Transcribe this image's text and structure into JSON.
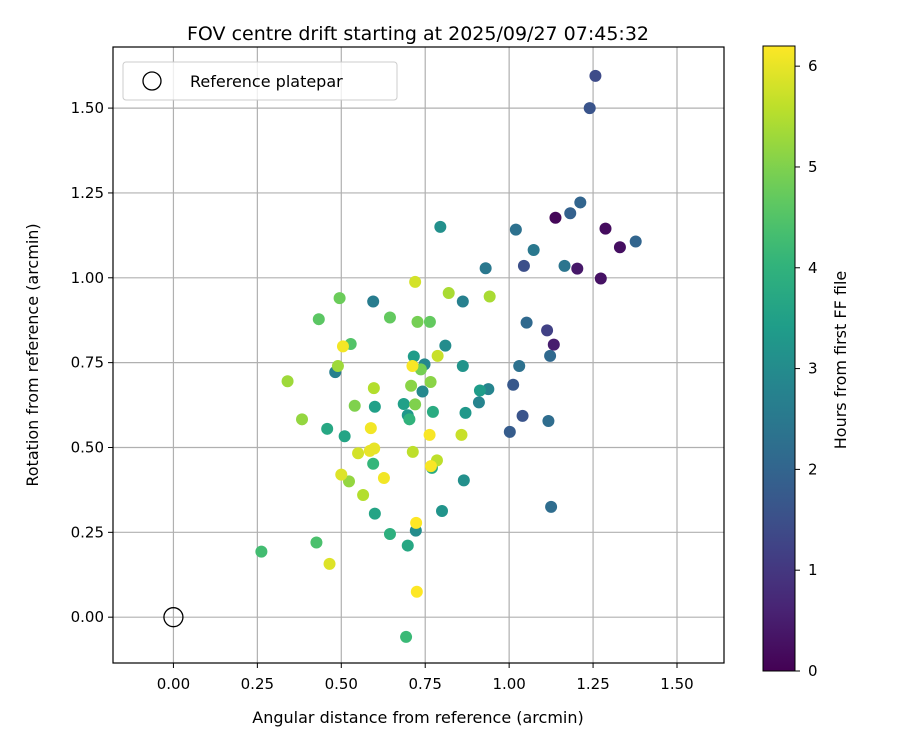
{
  "chart_data": {
    "type": "scatter",
    "title": "FOV centre drift starting at 2025/09/27 07:45:32",
    "xlabel": "Angular distance from reference (arcmin)",
    "ylabel": "Rotation from reference (arcmin)",
    "xlim": [
      -0.18,
      1.64
    ],
    "ylim": [
      -0.135,
      1.68
    ],
    "xticks": [
      0.0,
      0.25,
      0.5,
      0.75,
      1.0,
      1.25,
      1.5
    ],
    "xtick_labels": [
      "0.00",
      "0.25",
      "0.50",
      "0.75",
      "1.00",
      "1.25",
      "1.50"
    ],
    "yticks": [
      0.0,
      0.25,
      0.5,
      0.75,
      1.0,
      1.25,
      1.5
    ],
    "ytick_labels": [
      "0.00",
      "0.25",
      "0.50",
      "0.75",
      "1.00",
      "1.25",
      "1.50"
    ],
    "grid": true,
    "legend": {
      "position": "top-left",
      "entries": [
        "Reference platepar"
      ]
    },
    "reference_point": {
      "x": 0.0,
      "y": 0.0,
      "label": "Reference platepar"
    },
    "colorbar": {
      "label": "Hours from first FF file",
      "range": [
        0,
        6.2
      ],
      "ticks": [
        0,
        1,
        2,
        3,
        4,
        5,
        6
      ],
      "tick_labels": [
        "0",
        "1",
        "2",
        "3",
        "4",
        "5",
        "6"
      ],
      "colormap": "viridis"
    },
    "points": [
      {
        "x": 1.257,
        "y": 1.595,
        "c": 1.4
      },
      {
        "x": 1.24,
        "y": 1.5,
        "c": 1.6
      },
      {
        "x": 1.138,
        "y": 1.177,
        "c": 0.1
      },
      {
        "x": 1.287,
        "y": 1.145,
        "c": 0.2
      },
      {
        "x": 1.33,
        "y": 1.09,
        "c": 0.25
      },
      {
        "x": 1.273,
        "y": 0.998,
        "c": 0.3
      },
      {
        "x": 1.203,
        "y": 1.027,
        "c": 0.4
      },
      {
        "x": 1.133,
        "y": 0.803,
        "c": 0.5
      },
      {
        "x": 1.113,
        "y": 0.845,
        "c": 1.2
      },
      {
        "x": 1.044,
        "y": 1.035,
        "c": 1.5
      },
      {
        "x": 1.04,
        "y": 0.593,
        "c": 1.6
      },
      {
        "x": 1.002,
        "y": 0.546,
        "c": 1.8
      },
      {
        "x": 1.012,
        "y": 0.685,
        "c": 1.7
      },
      {
        "x": 1.182,
        "y": 1.19,
        "c": 1.9
      },
      {
        "x": 1.212,
        "y": 1.222,
        "c": 2.0
      },
      {
        "x": 1.377,
        "y": 1.107,
        "c": 2.0
      },
      {
        "x": 1.052,
        "y": 0.868,
        "c": 2.1
      },
      {
        "x": 1.122,
        "y": 0.77,
        "c": 2.1
      },
      {
        "x": 1.117,
        "y": 0.578,
        "c": 2.2
      },
      {
        "x": 1.125,
        "y": 0.325,
        "c": 2.2
      },
      {
        "x": 1.02,
        "y": 1.142,
        "c": 2.3
      },
      {
        "x": 1.03,
        "y": 0.74,
        "c": 2.3
      },
      {
        "x": 1.165,
        "y": 1.035,
        "c": 2.4
      },
      {
        "x": 0.93,
        "y": 1.028,
        "c": 2.5
      },
      {
        "x": 1.073,
        "y": 1.082,
        "c": 2.5
      },
      {
        "x": 0.595,
        "y": 0.93,
        "c": 2.6
      },
      {
        "x": 0.862,
        "y": 0.93,
        "c": 2.7
      },
      {
        "x": 0.482,
        "y": 0.722,
        "c": 2.7
      },
      {
        "x": 0.938,
        "y": 0.672,
        "c": 2.8
      },
      {
        "x": 0.91,
        "y": 0.633,
        "c": 2.8
      },
      {
        "x": 0.748,
        "y": 0.745,
        "c": 2.9
      },
      {
        "x": 0.742,
        "y": 0.665,
        "c": 2.9
      },
      {
        "x": 0.81,
        "y": 0.8,
        "c": 3.0
      },
      {
        "x": 0.722,
        "y": 0.255,
        "c": 3.0
      },
      {
        "x": 0.795,
        "y": 1.15,
        "c": 3.1
      },
      {
        "x": 0.865,
        "y": 0.403,
        "c": 3.1
      },
      {
        "x": 0.8,
        "y": 0.313,
        "c": 3.2
      },
      {
        "x": 0.862,
        "y": 0.74,
        "c": 3.2
      },
      {
        "x": 0.87,
        "y": 0.602,
        "c": 3.3
      },
      {
        "x": 0.698,
        "y": 0.595,
        "c": 3.3
      },
      {
        "x": 0.913,
        "y": 0.668,
        "c": 3.4
      },
      {
        "x": 0.716,
        "y": 0.768,
        "c": 3.4
      },
      {
        "x": 0.686,
        "y": 0.628,
        "c": 3.5
      },
      {
        "x": 0.6,
        "y": 0.62,
        "c": 3.5
      },
      {
        "x": 0.6,
        "y": 0.305,
        "c": 3.6
      },
      {
        "x": 0.51,
        "y": 0.533,
        "c": 3.6
      },
      {
        "x": 0.458,
        "y": 0.555,
        "c": 3.7
      },
      {
        "x": 0.698,
        "y": 0.211,
        "c": 3.7
      },
      {
        "x": 0.773,
        "y": 0.605,
        "c": 3.8
      },
      {
        "x": 0.77,
        "y": 0.44,
        "c": 3.8
      },
      {
        "x": 0.645,
        "y": 0.245,
        "c": 3.9
      },
      {
        "x": 0.703,
        "y": 0.583,
        "c": 4.0
      },
      {
        "x": 0.595,
        "y": 0.452,
        "c": 4.1
      },
      {
        "x": 0.693,
        "y": -0.058,
        "c": 4.2
      },
      {
        "x": 0.262,
        "y": 0.193,
        "c": 4.3
      },
      {
        "x": 0.426,
        "y": 0.22,
        "c": 4.4
      },
      {
        "x": 0.528,
        "y": 0.805,
        "c": 4.5
      },
      {
        "x": 0.433,
        "y": 0.878,
        "c": 4.6
      },
      {
        "x": 0.645,
        "y": 0.883,
        "c": 4.7
      },
      {
        "x": 0.764,
        "y": 0.87,
        "c": 4.7
      },
      {
        "x": 0.495,
        "y": 0.94,
        "c": 4.8
      },
      {
        "x": 0.727,
        "y": 0.87,
        "c": 4.9
      },
      {
        "x": 0.737,
        "y": 0.73,
        "c": 4.9
      },
      {
        "x": 0.72,
        "y": 0.627,
        "c": 5.0
      },
      {
        "x": 0.54,
        "y": 0.623,
        "c": 5.0
      },
      {
        "x": 0.766,
        "y": 0.693,
        "c": 5.1
      },
      {
        "x": 0.708,
        "y": 0.682,
        "c": 5.1
      },
      {
        "x": 0.383,
        "y": 0.583,
        "c": 5.2
      },
      {
        "x": 0.523,
        "y": 0.4,
        "c": 5.2
      },
      {
        "x": 0.49,
        "y": 0.74,
        "c": 5.3
      },
      {
        "x": 0.34,
        "y": 0.695,
        "c": 5.3
      },
      {
        "x": 0.82,
        "y": 0.955,
        "c": 5.4
      },
      {
        "x": 0.942,
        "y": 0.945,
        "c": 5.4
      },
      {
        "x": 0.597,
        "y": 0.675,
        "c": 5.5
      },
      {
        "x": 0.565,
        "y": 0.36,
        "c": 5.5
      },
      {
        "x": 0.785,
        "y": 0.462,
        "c": 5.6
      },
      {
        "x": 0.713,
        "y": 0.487,
        "c": 5.6
      },
      {
        "x": 0.858,
        "y": 0.537,
        "c": 5.7
      },
      {
        "x": 0.787,
        "y": 0.77,
        "c": 5.7
      },
      {
        "x": 0.72,
        "y": 0.988,
        "c": 5.8
      },
      {
        "x": 0.55,
        "y": 0.483,
        "c": 5.8
      },
      {
        "x": 0.465,
        "y": 0.157,
        "c": 5.9
      },
      {
        "x": 0.5,
        "y": 0.42,
        "c": 5.9
      },
      {
        "x": 0.598,
        "y": 0.497,
        "c": 6.0
      },
      {
        "x": 0.585,
        "y": 0.49,
        "c": 6.0
      },
      {
        "x": 0.627,
        "y": 0.41,
        "c": 6.1
      },
      {
        "x": 0.588,
        "y": 0.557,
        "c": 6.1
      },
      {
        "x": 0.505,
        "y": 0.798,
        "c": 6.1
      },
      {
        "x": 0.712,
        "y": 0.74,
        "c": 6.15
      },
      {
        "x": 0.767,
        "y": 0.445,
        "c": 6.15
      },
      {
        "x": 0.763,
        "y": 0.537,
        "c": 6.15
      },
      {
        "x": 0.723,
        "y": 0.278,
        "c": 6.2
      },
      {
        "x": 0.725,
        "y": 0.075,
        "c": 6.2
      }
    ]
  }
}
